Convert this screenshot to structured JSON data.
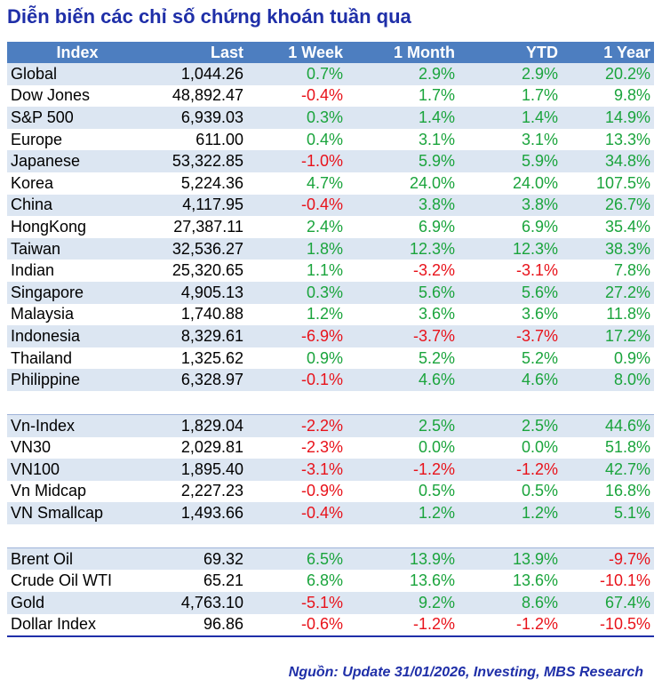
{
  "title": "Diễn biến các chỉ số chứng khoán tuần qua",
  "headers": [
    "Index",
    "Last",
    "1 Week",
    "1 Month",
    "YTD",
    "1 Year"
  ],
  "groups": [
    {
      "name": "global",
      "rows": [
        {
          "name": "Global",
          "last": "1,044.26",
          "week": "0.7%",
          "month": "2.9%",
          "ytd": "2.9%",
          "year": "20.2%"
        },
        {
          "name": "Dow Jones",
          "last": "48,892.47",
          "week": "-0.4%",
          "month": "1.7%",
          "ytd": "1.7%",
          "year": "9.8%"
        },
        {
          "name": "S&P 500",
          "last": "6,939.03",
          "week": "0.3%",
          "month": "1.4%",
          "ytd": "1.4%",
          "year": "14.9%"
        },
        {
          "name": "Europe",
          "last": "611.00",
          "week": "0.4%",
          "month": "3.1%",
          "ytd": "3.1%",
          "year": "13.3%"
        },
        {
          "name": "Japanese",
          "last": "53,322.85",
          "week": "-1.0%",
          "month": "5.9%",
          "ytd": "5.9%",
          "year": "34.8%"
        },
        {
          "name": "Korea",
          "last": "5,224.36",
          "week": "4.7%",
          "month": "24.0%",
          "ytd": "24.0%",
          "year": "107.5%"
        },
        {
          "name": "China",
          "last": "4,117.95",
          "week": "-0.4%",
          "month": "3.8%",
          "ytd": "3.8%",
          "year": "26.7%"
        },
        {
          "name": "HongKong",
          "last": "27,387.11",
          "week": "2.4%",
          "month": "6.9%",
          "ytd": "6.9%",
          "year": "35.4%"
        },
        {
          "name": "Taiwan",
          "last": "32,536.27",
          "week": "1.8%",
          "month": "12.3%",
          "ytd": "12.3%",
          "year": "38.3%"
        },
        {
          "name": "Indian",
          "last": "25,320.65",
          "week": "1.1%",
          "month": "-3.2%",
          "ytd": "-3.1%",
          "year": "7.8%"
        },
        {
          "name": "Singapore",
          "last": "4,905.13",
          "week": "0.3%",
          "month": "5.6%",
          "ytd": "5.6%",
          "year": "27.2%"
        },
        {
          "name": "Malaysia",
          "last": "1,740.88",
          "week": "1.2%",
          "month": "3.6%",
          "ytd": "3.6%",
          "year": "11.8%"
        },
        {
          "name": "Indonesia",
          "last": "8,329.61",
          "week": "-6.9%",
          "month": "-3.7%",
          "ytd": "-3.7%",
          "year": "17.2%"
        },
        {
          "name": "Thailand",
          "last": "1,325.62",
          "week": "0.9%",
          "month": "5.2%",
          "ytd": "5.2%",
          "year": "0.9%"
        },
        {
          "name": "Philippine",
          "last": "6,328.97",
          "week": "-0.1%",
          "month": "4.6%",
          "ytd": "4.6%",
          "year": "8.0%"
        }
      ]
    },
    {
      "name": "vietnam",
      "rows": [
        {
          "name": "Vn-Index",
          "last": "1,829.04",
          "week": "-2.2%",
          "month": "2.5%",
          "ytd": "2.5%",
          "year": "44.6%"
        },
        {
          "name": "VN30",
          "last": "2,029.81",
          "week": "-2.3%",
          "month": "0.0%",
          "ytd": "0.0%",
          "year": "51.8%"
        },
        {
          "name": "VN100",
          "last": "1,895.40",
          "week": "-3.1%",
          "month": "-1.2%",
          "ytd": "-1.2%",
          "year": "42.7%"
        },
        {
          "name": "Vn Midcap",
          "last": "2,227.23",
          "week": "-0.9%",
          "month": "0.5%",
          "ytd": "0.5%",
          "year": "16.8%"
        },
        {
          "name": "VN Smallcap",
          "last": "1,493.66",
          "week": "-0.4%",
          "month": "1.2%",
          "ytd": "1.2%",
          "year": "5.1%"
        }
      ]
    },
    {
      "name": "commodities",
      "rows": [
        {
          "name": "Brent Oil",
          "last": "69.32",
          "week": "6.5%",
          "month": "13.9%",
          "ytd": "13.9%",
          "year": "-9.7%"
        },
        {
          "name": "Crude Oil WTI",
          "last": "65.21",
          "week": "6.8%",
          "month": "13.6%",
          "ytd": "13.6%",
          "year": "-10.1%"
        },
        {
          "name": "Gold",
          "last": "4,763.10",
          "week": "-5.1%",
          "month": "9.2%",
          "ytd": "8.6%",
          "year": "67.4%"
        },
        {
          "name": "Dollar Index",
          "last": "96.86",
          "week": "-0.6%",
          "month": "-1.2%",
          "ytd": "-1.2%",
          "year": "-10.5%"
        }
      ]
    }
  ],
  "source": "Nguồn: Update  31/01/2026, Investing, MBS Research",
  "colors": {
    "header_bg": "#4d7ec0",
    "alt_row": "#dce6f2",
    "positive": "#1aa43c",
    "negative": "#e8121a",
    "title": "#1f2fa8"
  }
}
